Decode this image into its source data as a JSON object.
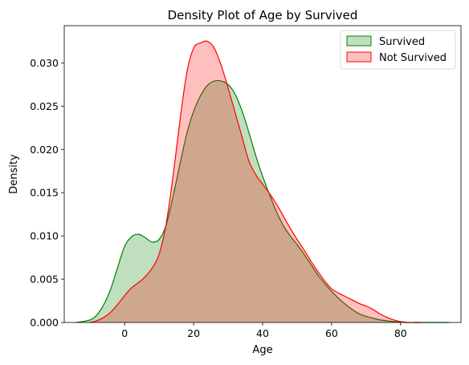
{
  "chart_data": {
    "type": "area",
    "title": "Density Plot of Age by Survived",
    "xlabel": "Age",
    "ylabel": "Density",
    "xlim": [
      -17.5,
      97.5
    ],
    "ylim": [
      0,
      0.0343
    ],
    "xticks": [
      0,
      20,
      40,
      60,
      80
    ],
    "yticks": [
      0.0,
      0.005,
      0.01,
      0.015,
      0.02,
      0.025,
      0.03
    ],
    "ytick_labels": [
      "0.000",
      "0.005",
      "0.010",
      "0.015",
      "0.020",
      "0.025",
      "0.030"
    ],
    "grid": false,
    "legend_position": "top-right",
    "series": [
      {
        "name": "Survived",
        "stroke": "#008000",
        "fill": "#008000",
        "fill_opacity": 0.25,
        "x": [
          -14,
          -10,
          -8,
          -6,
          -4,
          -2,
          0,
          2,
          4,
          6,
          8,
          10,
          12,
          14,
          16,
          18,
          20,
          22,
          24,
          26,
          28,
          30,
          32,
          34,
          36,
          38,
          40,
          42,
          44,
          46,
          48,
          50,
          52,
          54,
          56,
          58,
          60,
          62,
          64,
          66,
          68,
          70,
          72,
          74,
          76,
          78,
          80,
          82,
          84,
          86,
          88,
          90,
          92,
          94
        ],
        "y": [
          0.0,
          0.0003,
          0.0009,
          0.0021,
          0.0039,
          0.0064,
          0.0088,
          0.0099,
          0.0102,
          0.0098,
          0.0093,
          0.0096,
          0.0112,
          0.0145,
          0.0182,
          0.0218,
          0.0244,
          0.0262,
          0.0274,
          0.0279,
          0.0279,
          0.0275,
          0.0264,
          0.0245,
          0.022,
          0.0193,
          0.0169,
          0.0148,
          0.0128,
          0.0112,
          0.01,
          0.009,
          0.0079,
          0.0067,
          0.0055,
          0.0045,
          0.0036,
          0.0028,
          0.0021,
          0.0015,
          0.001,
          0.0007,
          0.0005,
          0.0003,
          0.0002,
          0.0001,
          0.0001,
          0.0,
          0.0,
          0.0,
          0.0,
          0.0,
          0.0,
          0.0
        ]
      },
      {
        "name": "Not Survived",
        "stroke": "#ff0000",
        "fill": "#ff0000",
        "fill_opacity": 0.25,
        "x": [
          -10,
          -8,
          -6,
          -4,
          -2,
          0,
          2,
          4,
          6,
          8,
          10,
          12,
          14,
          16,
          18,
          20,
          22,
          24,
          26,
          28,
          30,
          32,
          34,
          36,
          38,
          40,
          42,
          44,
          46,
          48,
          50,
          52,
          54,
          56,
          58,
          60,
          62,
          64,
          66,
          68,
          70,
          72,
          74,
          76,
          78,
          80,
          82,
          84,
          86
        ],
        "y": [
          0.0,
          0.0002,
          0.0006,
          0.0012,
          0.0021,
          0.0031,
          0.004,
          0.0046,
          0.0053,
          0.0063,
          0.0079,
          0.0113,
          0.0168,
          0.0232,
          0.0288,
          0.0317,
          0.0323,
          0.0325,
          0.0317,
          0.0297,
          0.0271,
          0.0243,
          0.0215,
          0.0187,
          0.0171,
          0.016,
          0.0149,
          0.0137,
          0.0123,
          0.0109,
          0.0096,
          0.0084,
          0.0071,
          0.0059,
          0.0048,
          0.0039,
          0.0034,
          0.003,
          0.0026,
          0.0022,
          0.0019,
          0.0015,
          0.001,
          0.0006,
          0.0003,
          0.0001,
          0.0,
          0.0,
          0.0
        ]
      }
    ]
  }
}
